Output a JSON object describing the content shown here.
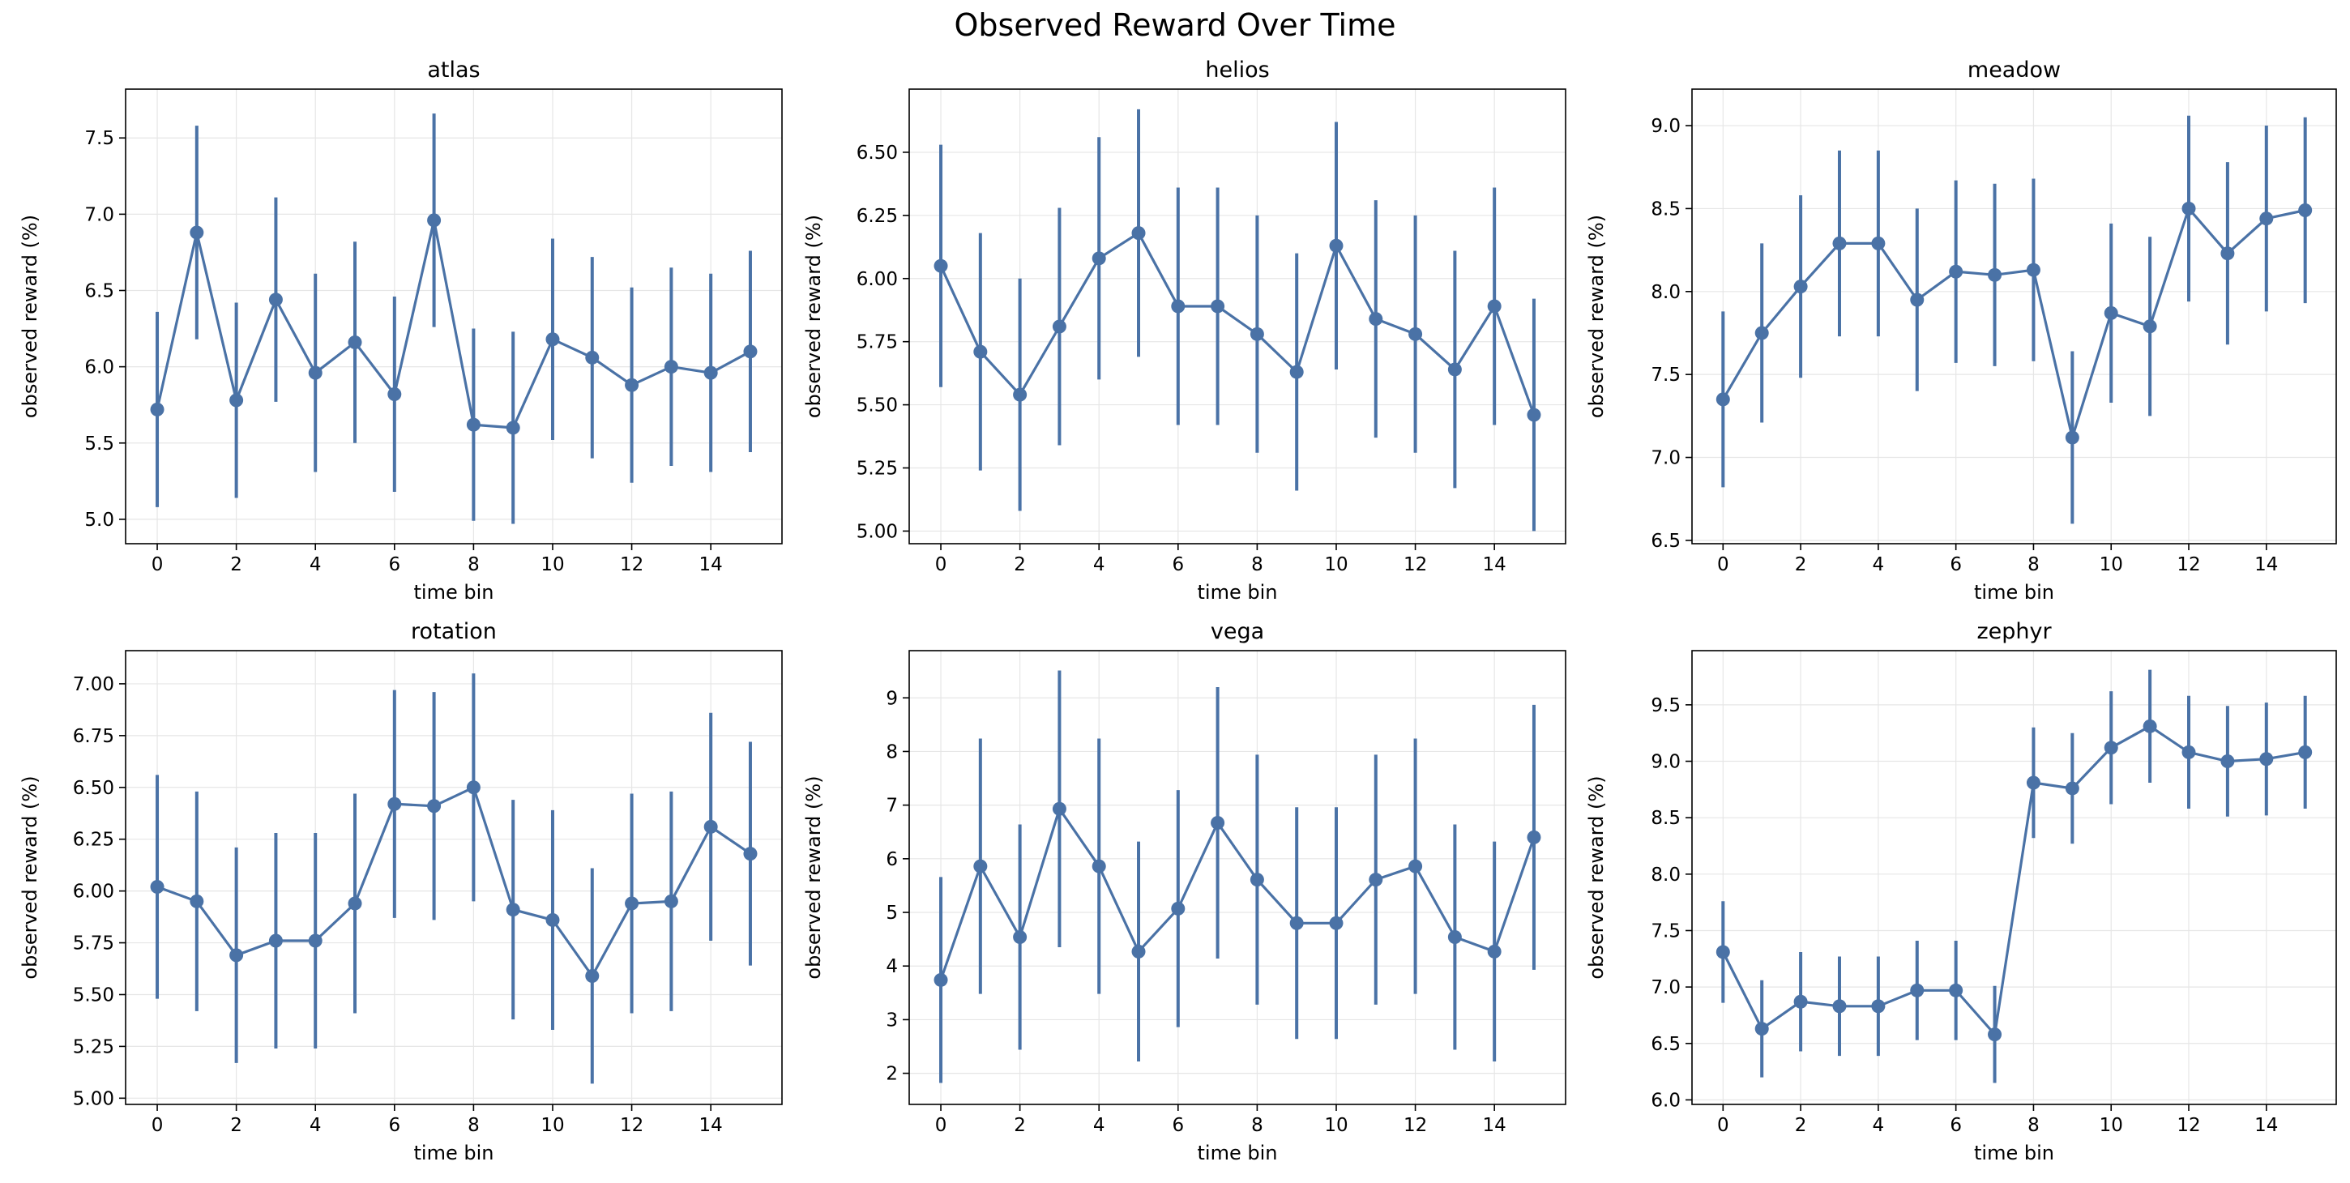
{
  "figure": {
    "title": "Observed Reward Over Time"
  },
  "style": {
    "series_color": "#4a72a6",
    "grid": true
  },
  "chart_data": [
    {
      "type": "line",
      "title": "atlas",
      "xlabel": "time bin",
      "ylabel": "observed reward (%)",
      "x": [
        0,
        1,
        2,
        3,
        4,
        5,
        6,
        7,
        8,
        9,
        10,
        11,
        12,
        13,
        14,
        15
      ],
      "y": [
        5.72,
        6.88,
        5.78,
        6.44,
        5.96,
        6.16,
        5.82,
        6.96,
        5.62,
        5.6,
        6.18,
        6.06,
        5.88,
        6.0,
        5.96,
        6.1
      ],
      "err": [
        0.64,
        0.7,
        0.64,
        0.67,
        0.65,
        0.66,
        0.64,
        0.7,
        0.63,
        0.63,
        0.66,
        0.66,
        0.64,
        0.65,
        0.65,
        0.66
      ],
      "xlim": [
        -0.8,
        15.8
      ],
      "ylim": [
        4.84,
        7.82
      ],
      "xticks": [
        0,
        2,
        4,
        6,
        8,
        10,
        12,
        14
      ],
      "yticks": [
        5.0,
        5.5,
        6.0,
        6.5,
        7.0,
        7.5
      ],
      "ytick_labels": [
        "5.0",
        "5.5",
        "6.0",
        "6.5",
        "7.0",
        "7.5"
      ]
    },
    {
      "type": "line",
      "title": "helios",
      "xlabel": "time bin",
      "ylabel": "observed reward (%)",
      "x": [
        0,
        1,
        2,
        3,
        4,
        5,
        6,
        7,
        8,
        9,
        10,
        11,
        12,
        13,
        14,
        15
      ],
      "y": [
        6.05,
        5.71,
        5.54,
        5.81,
        6.08,
        6.18,
        5.89,
        5.89,
        5.78,
        5.63,
        6.13,
        5.84,
        5.78,
        5.64,
        5.89,
        5.46
      ],
      "err": [
        0.48,
        0.47,
        0.46,
        0.47,
        0.48,
        0.49,
        0.47,
        0.47,
        0.47,
        0.47,
        0.49,
        0.47,
        0.47,
        0.47,
        0.47,
        0.46
      ],
      "xlim": [
        -0.8,
        15.8
      ],
      "ylim": [
        4.95,
        6.75
      ],
      "xticks": [
        0,
        2,
        4,
        6,
        8,
        10,
        12,
        14
      ],
      "yticks": [
        5.0,
        5.25,
        5.5,
        5.75,
        6.0,
        6.25,
        6.5
      ],
      "ytick_labels": [
        "5.00",
        "5.25",
        "5.50",
        "5.75",
        "6.00",
        "6.25",
        "6.50"
      ]
    },
    {
      "type": "line",
      "title": "meadow",
      "xlabel": "time bin",
      "ylabel": "observed reward (%)",
      "x": [
        0,
        1,
        2,
        3,
        4,
        5,
        6,
        7,
        8,
        9,
        10,
        11,
        12,
        13,
        14,
        15
      ],
      "y": [
        7.35,
        7.75,
        8.03,
        8.29,
        8.29,
        7.95,
        8.12,
        8.1,
        8.13,
        7.12,
        7.87,
        7.79,
        8.5,
        8.23,
        8.44,
        8.49
      ],
      "err": [
        0.53,
        0.54,
        0.55,
        0.56,
        0.56,
        0.55,
        0.55,
        0.55,
        0.55,
        0.52,
        0.54,
        0.54,
        0.56,
        0.55,
        0.56,
        0.56
      ],
      "xlim": [
        -0.8,
        15.8
      ],
      "ylim": [
        6.48,
        9.22
      ],
      "xticks": [
        0,
        2,
        4,
        6,
        8,
        10,
        12,
        14
      ],
      "yticks": [
        6.5,
        7.0,
        7.5,
        8.0,
        8.5,
        9.0
      ],
      "ytick_labels": [
        "6.5",
        "7.0",
        "7.5",
        "8.0",
        "8.5",
        "9.0"
      ]
    },
    {
      "type": "line",
      "title": "rotation",
      "xlabel": "time bin",
      "ylabel": "observed reward (%)",
      "x": [
        0,
        1,
        2,
        3,
        4,
        5,
        6,
        7,
        8,
        9,
        10,
        11,
        12,
        13,
        14,
        15
      ],
      "y": [
        6.02,
        5.95,
        5.69,
        5.76,
        5.76,
        5.94,
        6.42,
        6.41,
        6.5,
        5.91,
        5.86,
        5.59,
        5.94,
        5.95,
        6.31,
        6.18
      ],
      "err": [
        0.54,
        0.53,
        0.52,
        0.52,
        0.52,
        0.53,
        0.55,
        0.55,
        0.55,
        0.53,
        0.53,
        0.52,
        0.53,
        0.53,
        0.55,
        0.54
      ],
      "xlim": [
        -0.8,
        15.8
      ],
      "ylim": [
        4.97,
        7.16
      ],
      "xticks": [
        0,
        2,
        4,
        6,
        8,
        10,
        12,
        14
      ],
      "yticks": [
        5.0,
        5.25,
        5.5,
        5.75,
        6.0,
        6.25,
        6.5,
        6.75,
        7.0
      ],
      "ytick_labels": [
        "5.00",
        "5.25",
        "5.50",
        "5.75",
        "6.00",
        "6.25",
        "6.50",
        "6.75",
        "7.00"
      ]
    },
    {
      "type": "line",
      "title": "vega",
      "xlabel": "time bin",
      "ylabel": "observed reward (%)",
      "x": [
        0,
        1,
        2,
        3,
        4,
        5,
        6,
        7,
        8,
        9,
        10,
        11,
        12,
        13,
        14,
        15
      ],
      "y": [
        3.74,
        5.86,
        4.54,
        6.93,
        5.86,
        4.27,
        5.07,
        6.67,
        5.61,
        4.8,
        4.8,
        5.61,
        5.86,
        4.54,
        4.27,
        6.4
      ],
      "err": [
        1.92,
        2.38,
        2.1,
        2.58,
        2.38,
        2.05,
        2.21,
        2.53,
        2.33,
        2.16,
        2.16,
        2.33,
        2.38,
        2.1,
        2.05,
        2.47
      ],
      "xlim": [
        -0.8,
        15.8
      ],
      "ylim": [
        1.42,
        9.88
      ],
      "xticks": [
        0,
        2,
        4,
        6,
        8,
        10,
        12,
        14
      ],
      "yticks": [
        2,
        3,
        4,
        5,
        6,
        7,
        8,
        9
      ],
      "ytick_labels": [
        "2",
        "3",
        "4",
        "5",
        "6",
        "7",
        "8",
        "9"
      ]
    },
    {
      "type": "line",
      "title": "zephyr",
      "xlabel": "time bin",
      "ylabel": "observed reward (%)",
      "x": [
        0,
        1,
        2,
        3,
        4,
        5,
        6,
        7,
        8,
        9,
        10,
        11,
        12,
        13,
        14,
        15
      ],
      "y": [
        7.31,
        6.63,
        6.87,
        6.83,
        6.83,
        6.97,
        6.97,
        6.58,
        8.81,
        8.76,
        9.12,
        9.31,
        9.08,
        9.0,
        9.02,
        9.08
      ],
      "err": [
        0.45,
        0.43,
        0.44,
        0.44,
        0.44,
        0.44,
        0.44,
        0.43,
        0.49,
        0.49,
        0.5,
        0.5,
        0.5,
        0.49,
        0.5,
        0.5
      ],
      "xlim": [
        -0.8,
        15.8
      ],
      "ylim": [
        5.96,
        9.98
      ],
      "xticks": [
        0,
        2,
        4,
        6,
        8,
        10,
        12,
        14
      ],
      "yticks": [
        6.0,
        6.5,
        7.0,
        7.5,
        8.0,
        8.5,
        9.0,
        9.5
      ],
      "ytick_labels": [
        "6.0",
        "6.5",
        "7.0",
        "7.5",
        "8.0",
        "8.5",
        "9.0",
        "9.5"
      ]
    }
  ]
}
